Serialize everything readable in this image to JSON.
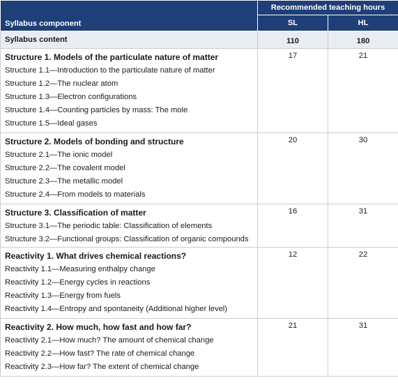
{
  "header": {
    "recommended": "Recommended teaching hours",
    "component": "Syllabus component",
    "sl": "SL",
    "hl": "HL"
  },
  "summary": {
    "label": "Syllabus content",
    "sl": "110",
    "hl": "180"
  },
  "groups": [
    {
      "title": "Structure 1. Models of the particulate nature of matter",
      "sl": "17",
      "hl": "21",
      "items": [
        "Structure 1.1—Introduction to the particulate nature of matter",
        "Structure 1.2—The nuclear atom",
        "Structure 1.3—Electron configurations",
        "Structure 1.4—Counting particles by mass: The mole",
        "Structure 1.5—Ideal gases"
      ]
    },
    {
      "title": "Structure 2. Models of bonding and structure",
      "sl": "20",
      "hl": "30",
      "items": [
        "Structure 2.1—The ionic model",
        "Structure 2.2—The covalent model",
        "Structure 2.3—The metallic model",
        "Structure 2.4—From models to materials"
      ]
    },
    {
      "title": "Structure 3. Classification of matter",
      "sl": "16",
      "hl": "31",
      "items": [
        "Structure 3.1—The periodic table: Classification of elements",
        "Structure 3.2—Functional groups: Classification of organic compounds"
      ]
    },
    {
      "title": "Reactivity 1. What drives chemical reactions?",
      "sl": "12",
      "hl": "22",
      "items": [
        "Reactivity 1.1—Measuring enthalpy change",
        "Reactivity 1.2—Energy cycles in reactions",
        "Reactivity 1.3—Energy from fuels",
        "Reactivity 1.4—Entropy and spontaneity (Additional higher level)"
      ]
    },
    {
      "title": "Reactivity 2. How much, how fast and how far?",
      "sl": "21",
      "hl": "31",
      "items": [
        "Reactivity 2.1—How much? The amount of chemical change",
        "Reactivity 2.2—How fast? The rate of chemical change",
        "Reactivity 2.3—How far? The extent of chemical change"
      ]
    }
  ]
}
